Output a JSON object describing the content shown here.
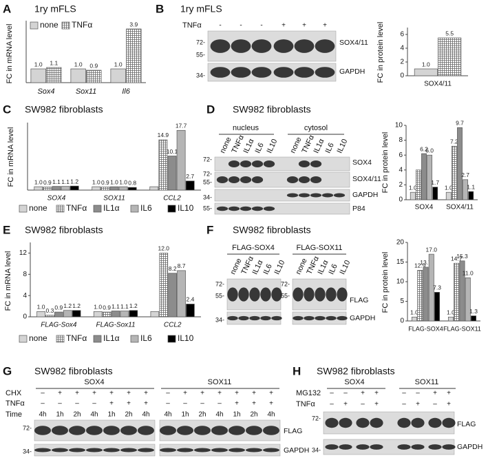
{
  "panels": {
    "A": {
      "letter": "A",
      "title": "1ry mFLS"
    },
    "B": {
      "letter": "B",
      "title": "1ry mFLS"
    },
    "C": {
      "letter": "C",
      "title": "SW982 fibroblasts"
    },
    "D": {
      "letter": "D",
      "title": "SW982 fibroblasts"
    },
    "E": {
      "letter": "E",
      "title": "SW982 fibroblasts"
    },
    "F": {
      "letter": "F",
      "title": "SW982 fibroblasts"
    },
    "G": {
      "letter": "G",
      "title": "SW982 fibroblasts"
    },
    "H": {
      "letter": "H",
      "title": "SW982 fibroblasts"
    }
  },
  "chart_data": [
    {
      "type": "bar",
      "ylabel": "FC in mRNA level",
      "categories": [
        "Sox4",
        "Sox11",
        "Il6"
      ],
      "ylim": [
        0,
        4.5
      ],
      "legend": "top",
      "series": [
        {
          "name": "none",
          "color": "#d4d4d4",
          "values": [
            1.0,
            1.0,
            1.0
          ],
          "value_labels": [
            "1.0",
            "1.0",
            "1.0"
          ]
        },
        {
          "name": "TNFα",
          "color": "#ffffff",
          "pattern": "grid",
          "values": [
            1.1,
            0.9,
            3.9
          ],
          "value_labels": [
            "1.1",
            "0.9",
            "3.9"
          ]
        }
      ]
    },
    {
      "type": "bar",
      "ylabel": "FC in protein level",
      "categories": [
        "SOX4/11"
      ],
      "ylim": [
        0,
        7
      ],
      "yticks": [
        0,
        2,
        4,
        6
      ],
      "series": [
        {
          "color": "#d4d4d4",
          "values": [
            1.0
          ],
          "value_labels": [
            "1.0"
          ]
        },
        {
          "color": "#ffffff",
          "pattern": "grid",
          "values": [
            5.5
          ],
          "value_labels": [
            "5.5"
          ]
        }
      ]
    },
    {
      "type": "bar",
      "ylabel": "FC in mRNA level",
      "categories": [
        "SOX4",
        "SOX11",
        "CCL2"
      ],
      "ylim": [
        0,
        20
      ],
      "legend": "bottom",
      "series": [
        {
          "name": "none",
          "color": "#d4d4d4",
          "values": [
            1.0,
            1.0,
            1.0
          ],
          "value_labels": [
            "1.0",
            "1.0",
            null
          ]
        },
        {
          "name": "TNFα",
          "color": "#ffffff",
          "pattern": "grid",
          "values": [
            0.9,
            0.9,
            14.9
          ],
          "value_labels": [
            "0.9",
            "0.9",
            "14.9"
          ]
        },
        {
          "name": "IL1α",
          "color": "#8c8c8c",
          "values": [
            1.1,
            1.0,
            10.1
          ],
          "value_labels": [
            "1.1",
            "1.0",
            "10.1"
          ]
        },
        {
          "name": "IL6",
          "color": "#b5b5b5",
          "values": [
            1.1,
            1.0,
            17.7
          ],
          "value_labels": [
            "1.1",
            "1.0",
            "17.7"
          ]
        },
        {
          "name": "IL10",
          "color": "#000000",
          "values": [
            1.2,
            0.8,
            2.7
          ],
          "value_labels": [
            "1.2",
            "0.8",
            "2.7"
          ]
        }
      ]
    },
    {
      "type": "bar",
      "ylabel": "FC in protein level",
      "categories": [
        "SOX4",
        "SOX4/11"
      ],
      "ylim": [
        0,
        10
      ],
      "yticks": [
        0,
        2,
        4,
        6,
        8,
        10
      ],
      "series": [
        {
          "color": "#d4d4d4",
          "values": [
            1.0,
            1.0
          ],
          "value_labels": [
            "1.0",
            "1.0"
          ]
        },
        {
          "color": "#ffffff",
          "pattern": "grid",
          "values": [
            4.0,
            7.2
          ],
          "value_labels": [
            null,
            "7.2"
          ]
        },
        {
          "color": "#8c8c8c",
          "values": [
            6.2,
            9.7
          ],
          "value_labels": [
            "6.2",
            "9.7"
          ]
        },
        {
          "color": "#b5b5b5",
          "values": [
            6.0,
            2.7
          ],
          "value_labels": [
            "6.0",
            "2.7"
          ]
        },
        {
          "color": "#000000",
          "values": [
            1.7,
            1.1
          ],
          "value_labels": [
            "1.7",
            "1.1"
          ]
        }
      ]
    },
    {
      "type": "bar",
      "ylabel": "FC in mRNA level",
      "categories": [
        "FLAG-Sox4",
        "FLAG-Sox11",
        "CCL2"
      ],
      "ylim": [
        0,
        14
      ],
      "yticks": [
        0,
        4,
        8,
        12
      ],
      "legend": "bottom",
      "series": [
        {
          "name": "none",
          "color": "#d4d4d4",
          "values": [
            1.0,
            1.0,
            1.0
          ],
          "value_labels": [
            "1.0",
            "1.0",
            null
          ]
        },
        {
          "name": "TNFα",
          "color": "#ffffff",
          "pattern": "grid",
          "values": [
            0.3,
            0.9,
            12.0
          ],
          "value_labels": [
            "0.3",
            "0.9",
            "12.0"
          ]
        },
        {
          "name": "IL1α",
          "color": "#8c8c8c",
          "values": [
            0.9,
            1.1,
            8.2
          ],
          "value_labels": [
            "0.9",
            "1.1",
            "8.2"
          ]
        },
        {
          "name": "IL6",
          "color": "#b5b5b5",
          "values": [
            1.2,
            1.1,
            8.7
          ],
          "value_labels": [
            "1.2",
            "1.1",
            "8.7"
          ]
        },
        {
          "name": "IL10",
          "color": "#000000",
          "values": [
            1.2,
            1.2,
            2.4
          ],
          "value_labels": [
            "1.2",
            "1.2",
            "2.4"
          ]
        }
      ]
    },
    {
      "type": "bar",
      "ylabel": "FC in protein level",
      "categories": [
        "FLAG-SOX4",
        "FLAG-SOX11"
      ],
      "ylim": [
        0,
        20
      ],
      "yticks": [
        0,
        5,
        10,
        15,
        20
      ],
      "series": [
        {
          "color": "#d4d4d4",
          "values": [
            1.0,
            1.0
          ],
          "value_labels": [
            "1.0",
            "1.0"
          ]
        },
        {
          "color": "#ffffff",
          "pattern": "grid",
          "values": [
            12.9,
            14.7
          ],
          "value_labels": [
            "12.9",
            "14.7"
          ]
        },
        {
          "color": "#8c8c8c",
          "values": [
            13.7,
            15.3
          ],
          "value_labels": [
            "13.7",
            "15.3"
          ]
        },
        {
          "color": "#b5b5b5",
          "values": [
            17.0,
            11.0
          ],
          "value_labels": [
            "17.0",
            "11.0"
          ]
        },
        {
          "color": "#000000",
          "values": [
            7.3,
            1.3
          ],
          "value_labels": [
            "7.3",
            "1.3"
          ]
        }
      ]
    }
  ],
  "blots": {
    "B": {
      "rows": [
        {
          "label": "TNFα",
          "values": [
            "-",
            "-",
            "-",
            "+",
            "+",
            "+"
          ]
        }
      ],
      "markers": [
        "72-",
        "55-",
        "34-"
      ],
      "band_labels": [
        "SOX4/11",
        "GAPDH"
      ]
    },
    "D": {
      "groups": [
        "nucleus",
        "cytosol"
      ],
      "lane_labels": [
        "none",
        "TNFα",
        "IL1α",
        "IL6",
        "IL10",
        "none",
        "TNFα",
        "IL1α",
        "IL6",
        "IL10"
      ],
      "markers": [
        "72-",
        "72-",
        "55-",
        "34-",
        "55-"
      ],
      "band_labels": [
        "SOX4",
        "SOX4/11",
        "GAPDH",
        "P84"
      ]
    },
    "F": {
      "groups": [
        "FLAG-SOX4",
        "FLAG-SOX11"
      ],
      "lane_labels": [
        "none",
        "TNFα",
        "IL1α",
        "IL6",
        "IL10",
        "none",
        "TNFα",
        "IL1α",
        "IL6",
        "IL10"
      ],
      "markers": [
        "72-",
        "55-",
        "34-",
        "72-",
        "55-"
      ],
      "band_labels": [
        "FLAG",
        "GAPDH"
      ]
    },
    "G": {
      "groups": [
        "SOX4",
        "SOX11"
      ],
      "rows": [
        {
          "label": "CHX",
          "values": [
            "–",
            "+",
            "+",
            "+",
            "+",
            "+",
            "+",
            "–",
            "+",
            "+",
            "+",
            "+",
            "+",
            "+"
          ]
        },
        {
          "label": "TNFα",
          "values": [
            "–",
            "–",
            "–",
            "–",
            "+",
            "+",
            "+",
            "–",
            "–",
            "–",
            "–",
            "+",
            "+",
            "+"
          ]
        },
        {
          "label": "Time",
          "values": [
            "4h",
            "1h",
            "2h",
            "4h",
            "1h",
            "2h",
            "4h",
            "4h",
            "1h",
            "2h",
            "4h",
            "1h",
            "2h",
            "4h"
          ]
        }
      ],
      "markers": [
        "72-",
        "34-"
      ],
      "band_labels": [
        "FLAG",
        "GAPDH"
      ]
    },
    "H": {
      "groups": [
        "SOX4",
        "SOX11"
      ],
      "rows": [
        {
          "label": "MG132",
          "values": [
            "–",
            "–",
            "+",
            "+",
            "–",
            "–",
            "+",
            "+"
          ]
        },
        {
          "label": "TNFα",
          "values": [
            "–",
            "+",
            "–",
            "+",
            "–",
            "+",
            "–",
            "+"
          ]
        }
      ],
      "markers": [
        "72-",
        "34-"
      ],
      "band_labels": [
        "FLAG",
        "GAPDH"
      ]
    }
  }
}
